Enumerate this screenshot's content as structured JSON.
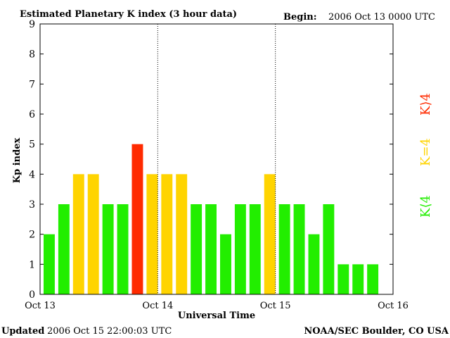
{
  "header": {
    "title": "Estimated Planetary K index (3 hour data)",
    "begin_label": "Begin:",
    "begin_value": "2006 Oct 13 0000 UTC"
  },
  "footer": {
    "updated_label": "Updated",
    "updated_value": "2006 Oct 15 22:00:03 UTC",
    "credit": "NOAA/SEC Boulder, CO USA"
  },
  "legend": {
    "high": {
      "label": "K⟩4",
      "color": "#ff2a00"
    },
    "equal": {
      "label": "K=4",
      "color": "#ffd400"
    },
    "low": {
      "label": "K⟨4",
      "color": "#22ee00"
    }
  },
  "chart_data": {
    "type": "bar",
    "title": "Estimated Planetary K index (3 hour data)",
    "xlabel": "Universal Time",
    "ylabel": "Kp index",
    "ylim": [
      0,
      9
    ],
    "yticks": [
      "0",
      "1",
      "2",
      "3",
      "4",
      "5",
      "6",
      "7",
      "8",
      "9"
    ],
    "xticks": [
      "Oct 13",
      "Oct 14",
      "Oct 15",
      "Oct 16"
    ],
    "day_divider_ticks": [
      1,
      2
    ],
    "slots_per_day": 8,
    "values": [
      2,
      3,
      4,
      4,
      3,
      3,
      5,
      4,
      4,
      4,
      3,
      3,
      2,
      3,
      3,
      4,
      3,
      3,
      2,
      3,
      1,
      1,
      1
    ],
    "colors": {
      "low": "#22ee00",
      "equal": "#ffd400",
      "high": "#ff2a00"
    }
  }
}
